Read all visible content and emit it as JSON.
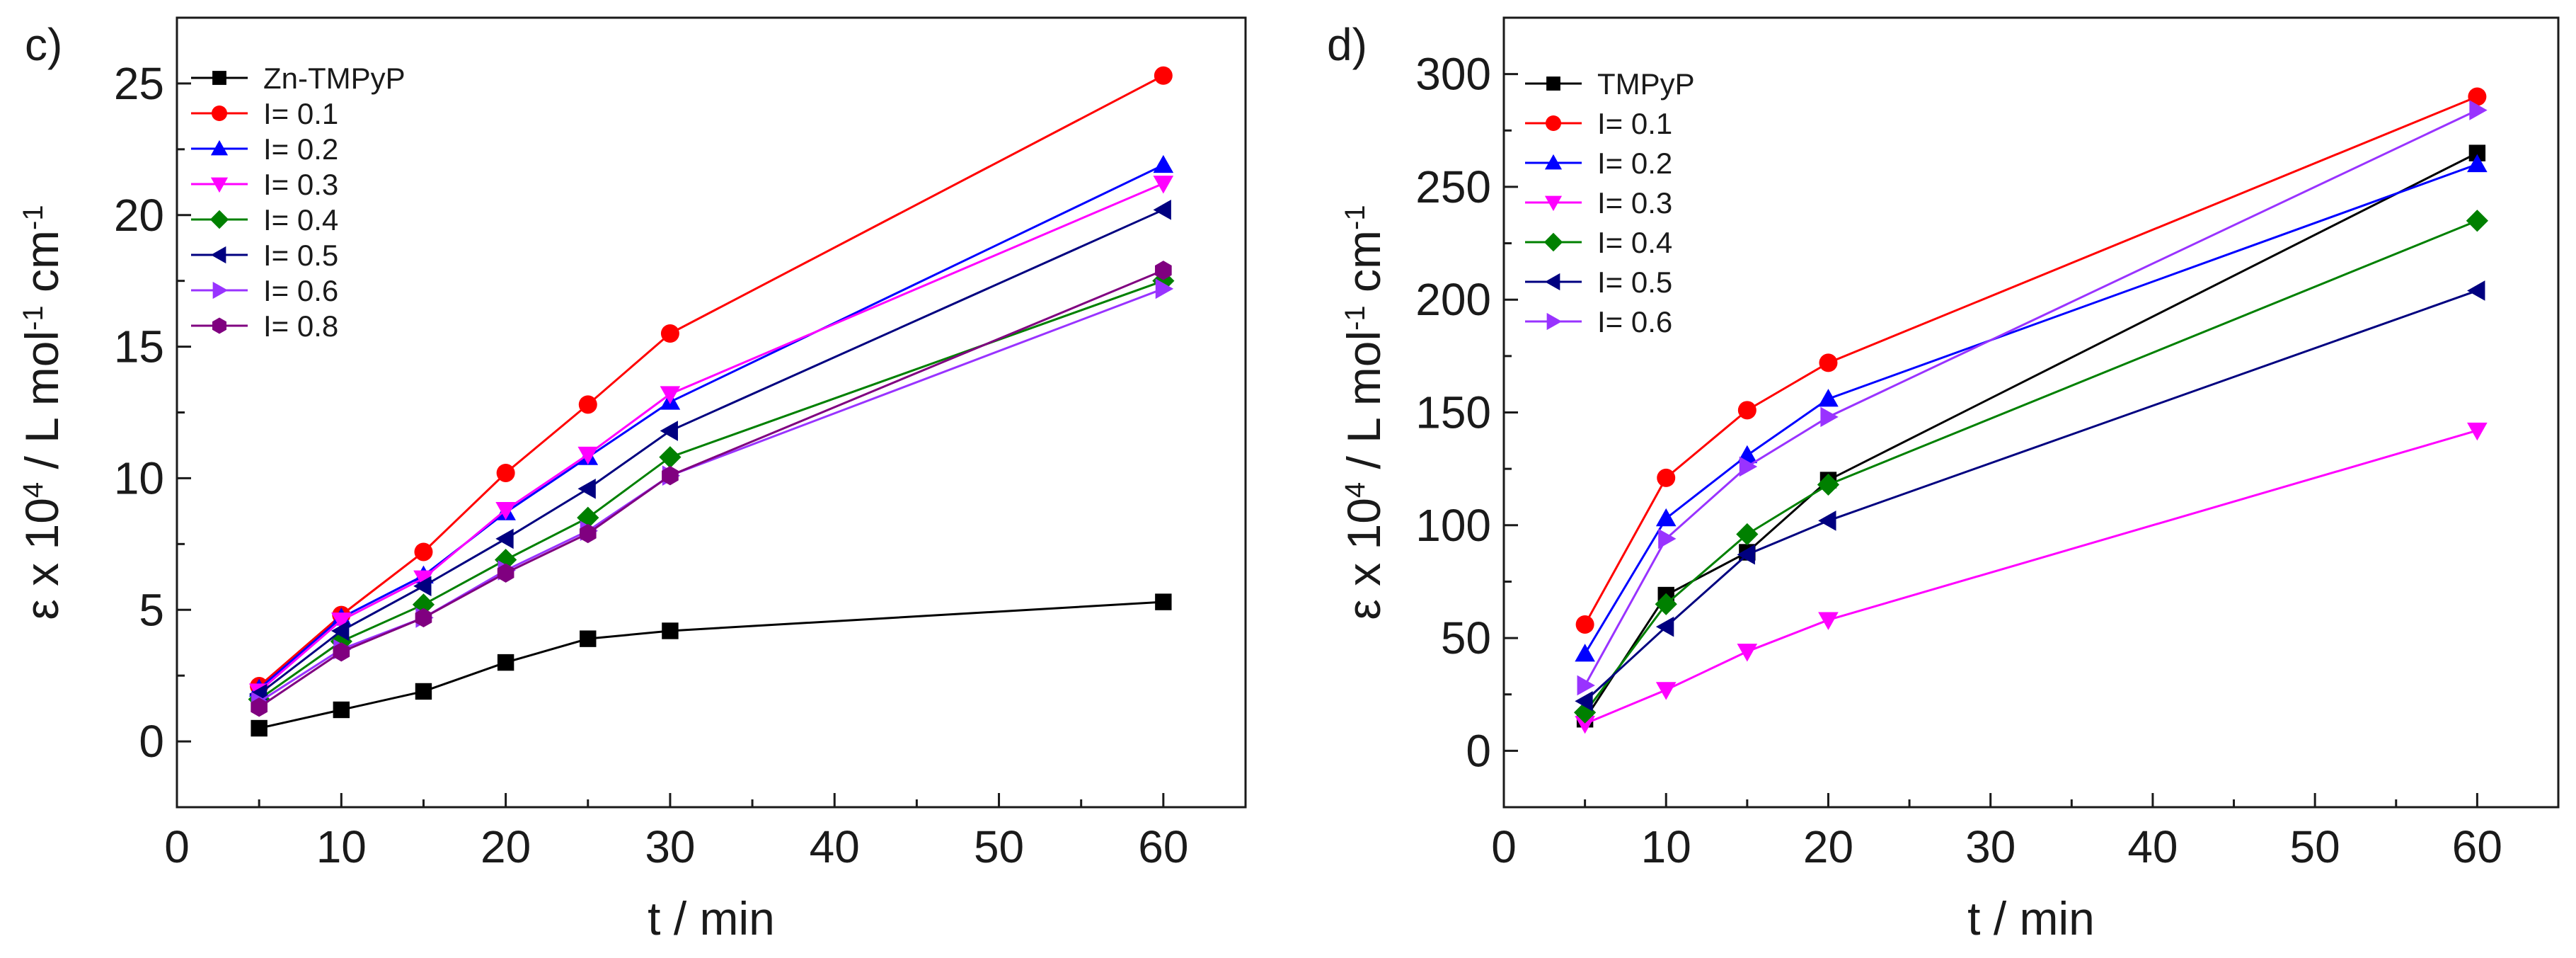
{
  "chart_data": [
    {
      "type": "line",
      "panel_label": "c)",
      "title": "",
      "xlabel": "t / min",
      "ylabel_parts": [
        "ε x 10",
        "4",
        " / L mol",
        "-1",
        " cm",
        "-1"
      ],
      "xlim": [
        0,
        65
      ],
      "ylim": [
        -2.5,
        27.5
      ],
      "xticks": [
        0,
        10,
        20,
        30,
        40,
        50,
        60
      ],
      "yticks": [
        0,
        5,
        10,
        15,
        20,
        25
      ],
      "x": [
        5,
        10,
        15,
        20,
        25,
        30,
        60
      ],
      "legend_position": "top-left",
      "series": [
        {
          "name": "Zn-TMPyP",
          "color": "#000000",
          "marker": "square",
          "values": [
            0.5,
            1.2,
            1.9,
            3.0,
            3.9,
            4.2,
            5.3
          ]
        },
        {
          "name": "I= 0.1",
          "color": "#ff0000",
          "marker": "circle",
          "values": [
            2.1,
            4.8,
            7.2,
            10.2,
            12.8,
            15.5,
            25.3
          ]
        },
        {
          "name": "I= 0.2",
          "color": "#0000ff",
          "marker": "triangle-up",
          "values": [
            2.0,
            4.7,
            6.3,
            8.7,
            10.8,
            12.9,
            21.9
          ]
        },
        {
          "name": "I= 0.3",
          "color": "#ff00ff",
          "marker": "triangle-down",
          "values": [
            1.9,
            4.6,
            6.2,
            8.8,
            10.9,
            13.2,
            21.2
          ]
        },
        {
          "name": "I= 0.4",
          "color": "#008000",
          "marker": "diamond",
          "values": [
            1.6,
            3.8,
            5.2,
            6.9,
            8.5,
            10.8,
            17.5
          ]
        },
        {
          "name": "I= 0.5",
          "color": "#000080",
          "marker": "triangle-left",
          "values": [
            1.8,
            4.2,
            5.9,
            7.7,
            9.6,
            11.8,
            20.2
          ]
        },
        {
          "name": "I= 0.6",
          "color": "#9933ff",
          "marker": "triangle-right",
          "values": [
            1.5,
            3.5,
            4.7,
            6.5,
            8.0,
            10.1,
            17.2
          ]
        },
        {
          "name": "I= 0.8",
          "color": "#800080",
          "marker": "hexagon",
          "values": [
            1.3,
            3.4,
            4.7,
            6.4,
            7.9,
            10.1,
            17.9
          ]
        }
      ]
    },
    {
      "type": "line",
      "panel_label": "d)",
      "title": "",
      "xlabel": "t / min",
      "ylabel_parts": [
        "ε x 10",
        "4",
        " / L mol",
        "-1",
        " cm",
        "-1"
      ],
      "xlim": [
        0,
        65
      ],
      "ylim": [
        -25,
        325
      ],
      "xticks": [
        0,
        10,
        20,
        30,
        40,
        50,
        60
      ],
      "yticks": [
        0,
        50,
        100,
        150,
        200,
        250,
        300
      ],
      "x": [
        5,
        10,
        15,
        20,
        60
      ],
      "legend_position": "top-left",
      "series": [
        {
          "name": "TMPyP",
          "color": "#000000",
          "marker": "square",
          "values": [
            14,
            69,
            88,
            120,
            265
          ]
        },
        {
          "name": "I= 0.1",
          "color": "#ff0000",
          "marker": "circle",
          "values": [
            56,
            121,
            151,
            172,
            290
          ]
        },
        {
          "name": "I= 0.2",
          "color": "#0000ff",
          "marker": "triangle-up",
          "values": [
            43,
            103,
            131,
            156,
            260
          ]
        },
        {
          "name": "I= 0.3",
          "color": "#ff00ff",
          "marker": "triangle-down",
          "values": [
            12,
            27,
            44,
            58,
            142
          ]
        },
        {
          "name": "I= 0.4",
          "color": "#008000",
          "marker": "diamond",
          "values": [
            17,
            65,
            96,
            118,
            235
          ]
        },
        {
          "name": "I= 0.5",
          "color": "#000080",
          "marker": "triangle-left",
          "values": [
            22,
            55,
            87,
            102,
            204
          ]
        },
        {
          "name": "I= 0.6",
          "color": "#9933ff",
          "marker": "triangle-right",
          "values": [
            29,
            94,
            126,
            148,
            284
          ]
        }
      ]
    }
  ]
}
